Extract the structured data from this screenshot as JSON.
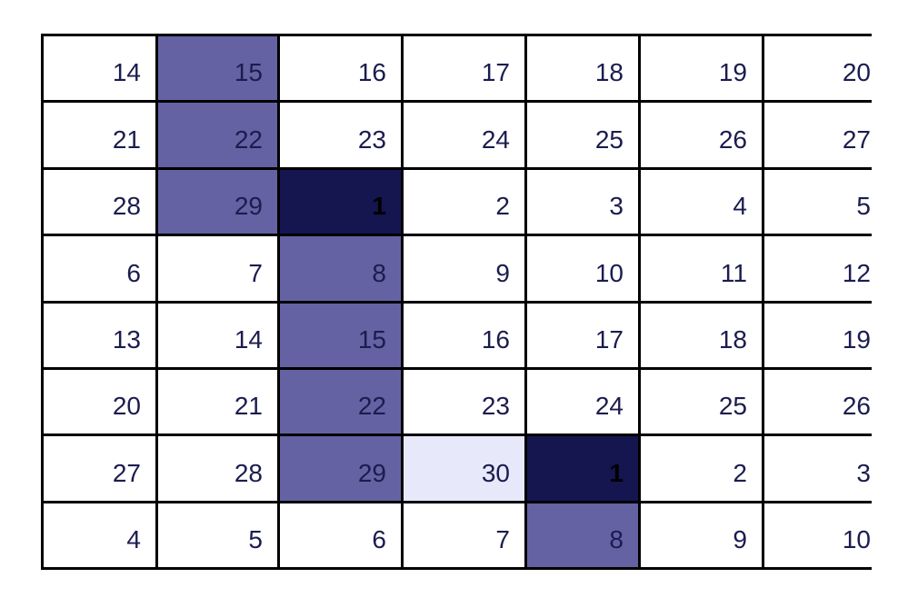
{
  "calendar": {
    "colors": {
      "text": "#1b1c4f",
      "highlight": "#6462a3",
      "dark": "#15154f",
      "light": "#e8e8fb",
      "grid": "#000000"
    },
    "rows": [
      [
        "14",
        "15",
        "16",
        "17",
        "18",
        "19",
        "20"
      ],
      [
        "21",
        "22",
        "23",
        "24",
        "25",
        "26",
        "27"
      ],
      [
        "28",
        "29",
        "1",
        "2",
        "3",
        "4",
        "5"
      ],
      [
        "6",
        "7",
        "8",
        "9",
        "10",
        "11",
        "12"
      ],
      [
        "13",
        "14",
        "15",
        "16",
        "17",
        "18",
        "19"
      ],
      [
        "20",
        "21",
        "22",
        "23",
        "24",
        "25",
        "26"
      ],
      [
        "27",
        "28",
        "29",
        "30",
        "1",
        "2",
        "3"
      ],
      [
        "4",
        "5",
        "6",
        "7",
        "8",
        "9",
        "10"
      ]
    ]
  }
}
